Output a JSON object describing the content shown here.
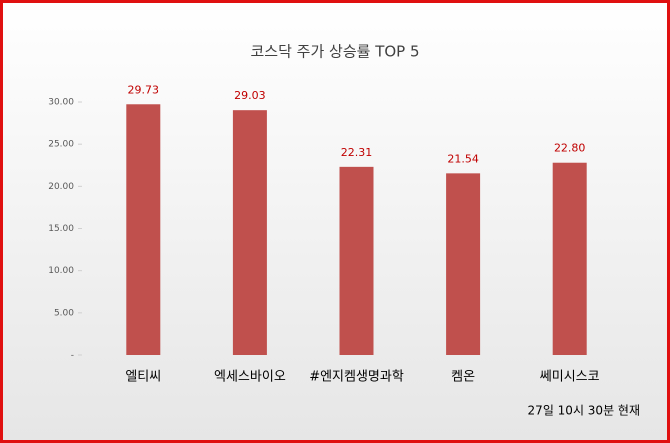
{
  "chart_data": {
    "type": "bar",
    "title": "코스닥 주가 상승률 TOP 5",
    "categories": [
      "엘티씨",
      "엑세스바이오",
      "#엔지켐생명과학",
      "켐온",
      "쎄미시스코"
    ],
    "values": [
      29.73,
      29.03,
      22.31,
      21.54,
      22.8
    ],
    "value_labels": [
      "29.73",
      "29.03",
      "22.31",
      "21.54",
      "22.80"
    ],
    "color": "#c0504d",
    "label_color": "#c00000",
    "ylim": [
      0,
      30
    ],
    "yticks": [
      {
        "value": 0,
        "label": "-"
      },
      {
        "value": 5,
        "label": "5.00"
      },
      {
        "value": 10,
        "label": "10.00"
      },
      {
        "value": 15,
        "label": "15.00"
      },
      {
        "value": 20,
        "label": "20.00"
      },
      {
        "value": 25,
        "label": "25.00"
      },
      {
        "value": 30,
        "label": "30.00"
      }
    ],
    "grid": false,
    "annotation": "27일 10시  30분 현재"
  }
}
